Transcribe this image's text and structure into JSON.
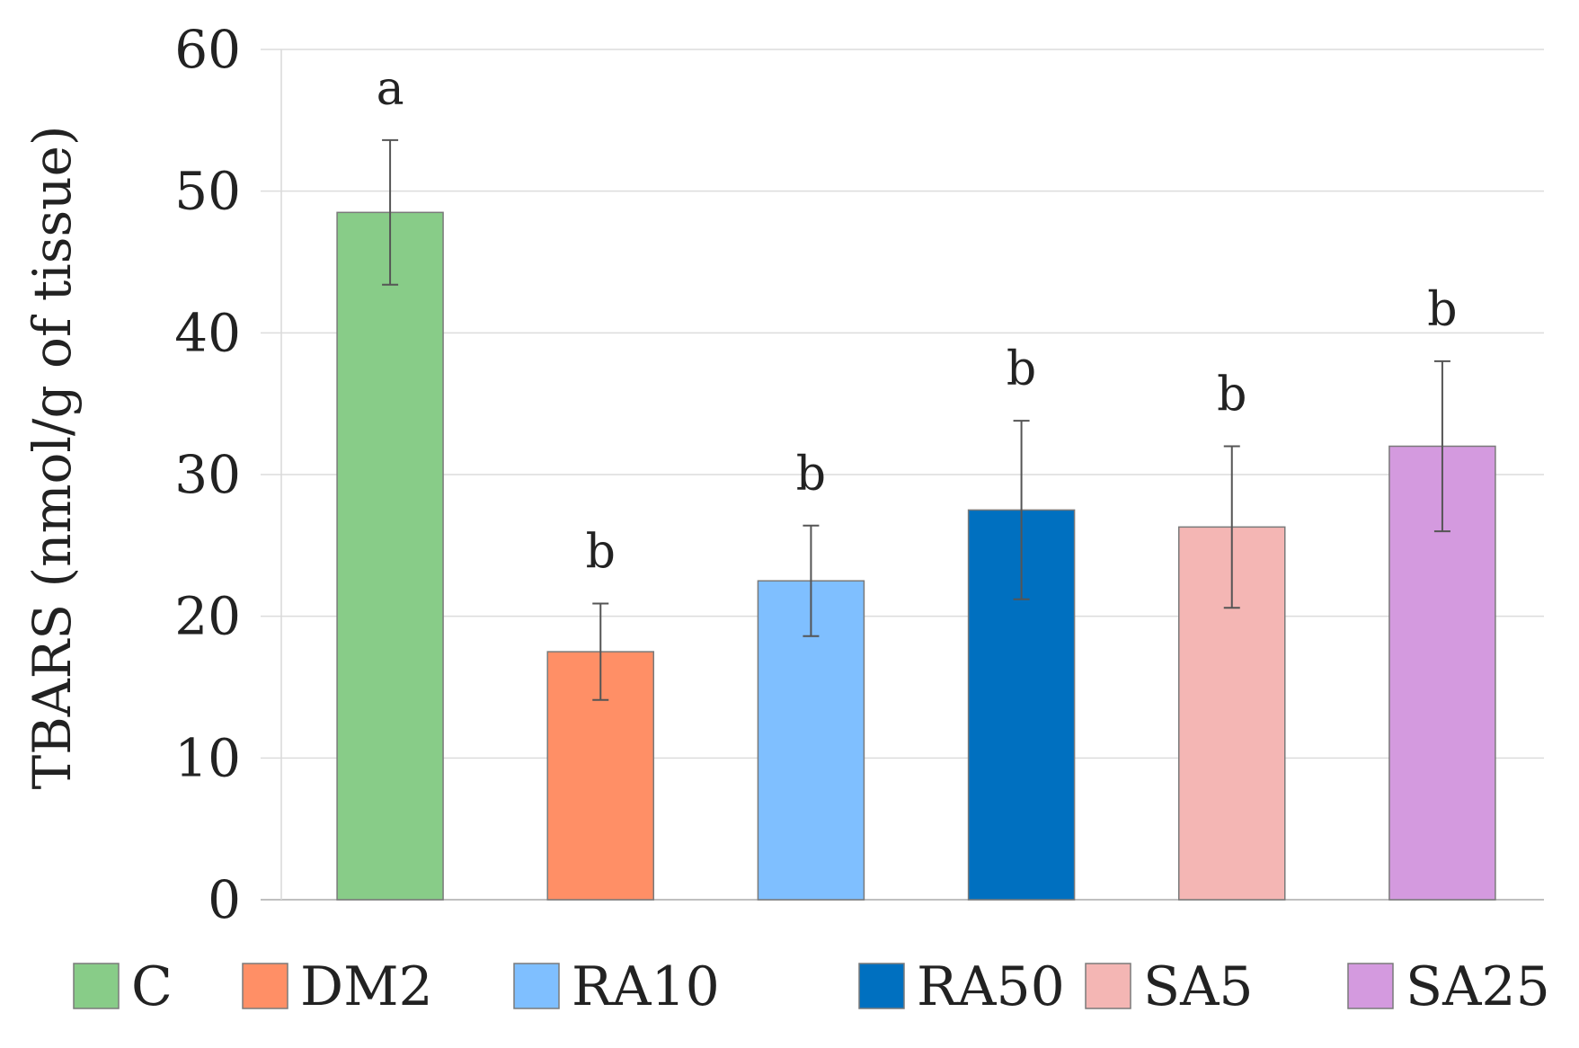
{
  "chart_data": {
    "type": "bar",
    "title": "",
    "xlabel": "",
    "ylabel": "TBARS (nmol/g of tissue)",
    "ylim": [
      0,
      60
    ],
    "yticks": [
      0,
      10,
      20,
      30,
      40,
      50,
      60
    ],
    "grid": true,
    "legend_position": "bottom",
    "categories": [
      "C",
      "DM2",
      "RA10",
      "RA50",
      "SA5",
      "SA25"
    ],
    "values": [
      48.5,
      17.5,
      22.5,
      27.5,
      26.3,
      32.0
    ],
    "errors": [
      5.1,
      3.4,
      3.9,
      6.3,
      5.7,
      6.0
    ],
    "significance": [
      "a",
      "b",
      "b",
      "b",
      "b",
      "b"
    ],
    "colors": [
      "#88cc88",
      "#ff8f66",
      "#7fbfff",
      "#0070c0",
      "#f4b6b4",
      "#d49adf"
    ]
  }
}
